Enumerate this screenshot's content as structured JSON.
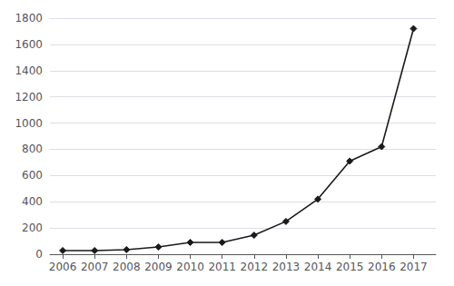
{
  "chart_data": {
    "type": "line",
    "x": [
      2006,
      2007,
      2008,
      2009,
      2010,
      2011,
      2012,
      2013,
      2014,
      2015,
      2016,
      2017
    ],
    "values": [
      28,
      28,
      35,
      55,
      90,
      90,
      145,
      250,
      420,
      710,
      820,
      1720
    ],
    "color": "#1a1a1a",
    "marker": "diamond",
    "xlim": [
      2005.6,
      2017.7
    ],
    "xticks": [
      2006,
      2007,
      2008,
      2009,
      2010,
      2011,
      2012,
      2013,
      2014,
      2015,
      2016,
      2017
    ],
    "ylim": [
      0,
      1800
    ],
    "yticks": [
      0,
      200,
      400,
      600,
      800,
      1000,
      1200,
      1400,
      1600,
      1800
    ],
    "grid": true
  }
}
